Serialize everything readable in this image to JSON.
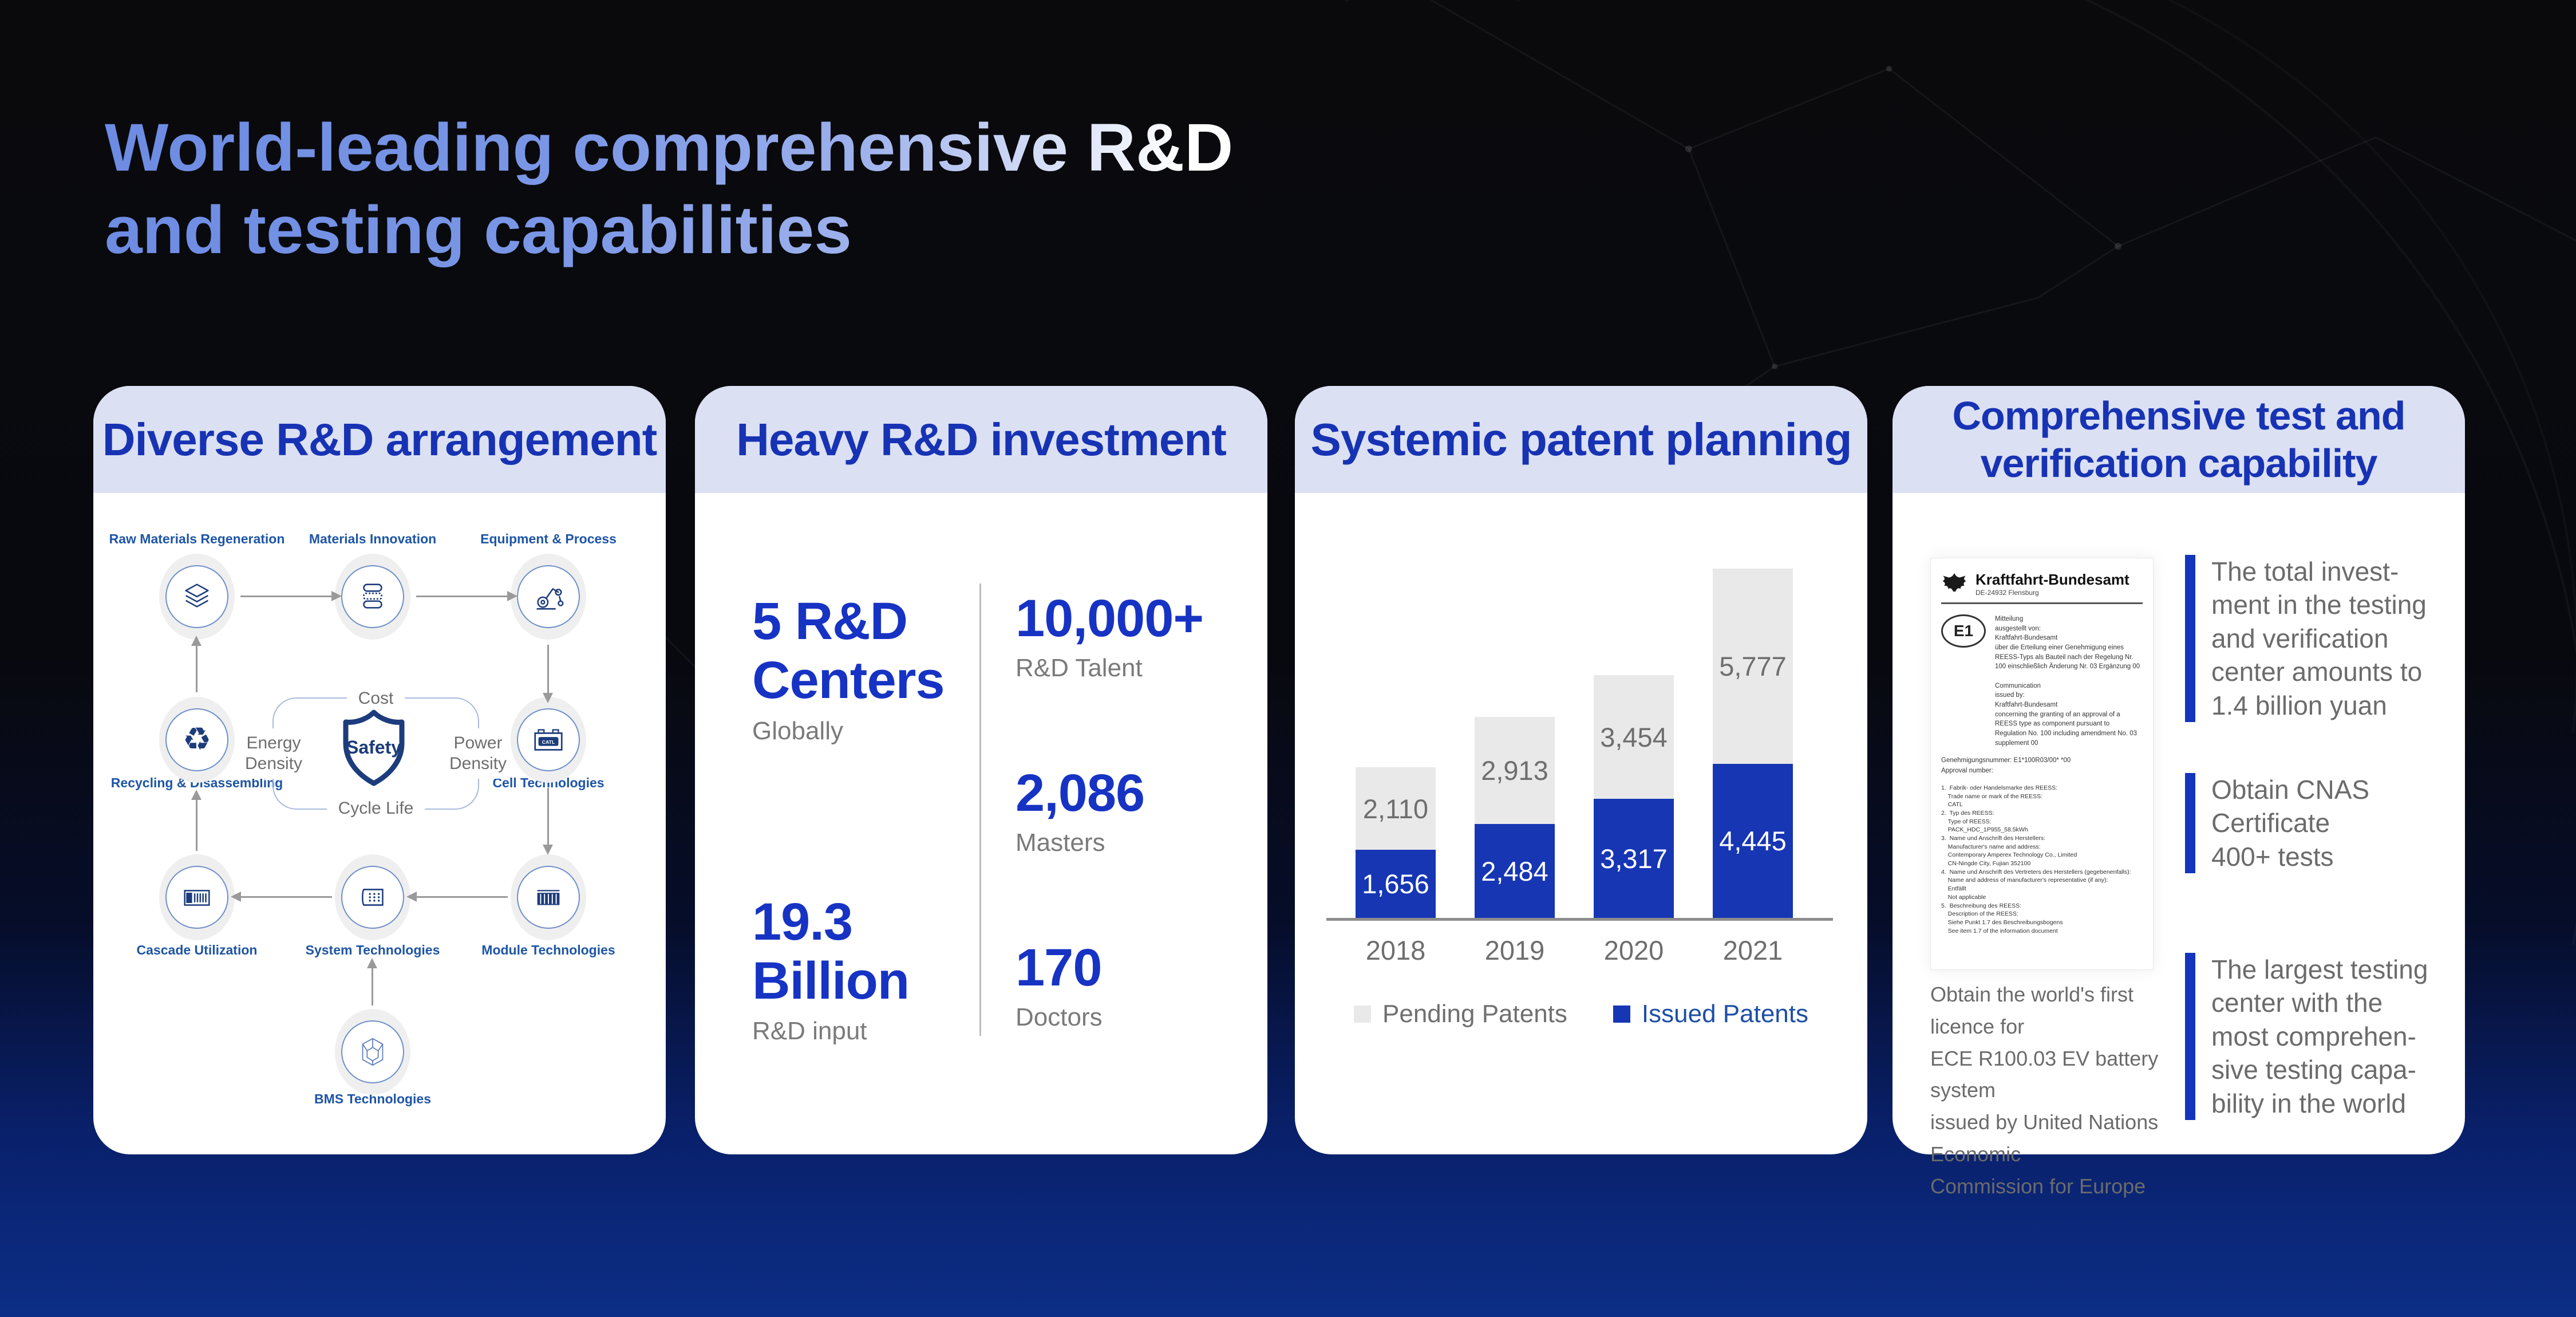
{
  "colors": {
    "accent_blue": "#1733c4",
    "header_bg": "#dbe0f3",
    "header_text": "#1733b4",
    "bar_issued": "#1636b4",
    "bar_pending": "#e9e9e9",
    "highlight_bar": "#1334bc",
    "shield_navy": "#1c3c7c",
    "title_gradient_start": "#6c8be2",
    "title_gradient_end": "#ffffff"
  },
  "slide": {
    "title": "World-leading comprehensive R&D\nand testing capabilities"
  },
  "cards": {
    "arrangement": {
      "title": "Diverse R&D arrangement",
      "nodes": {
        "raw": "Raw Materials Regeneration",
        "materials": "Materials Innovation",
        "equipment": "Equipment & Process",
        "recycling": "Recycling & Disassembling",
        "cell": "Cell Technologies",
        "cascade": "Cascade Utilization",
        "system": "System Technologies",
        "module": "Module Technologies",
        "bms": "BMS Technologies"
      },
      "shield": {
        "center": "Safety",
        "top": "Cost",
        "bottom": "Cycle Life",
        "left": "Energy\nDensity",
        "right": "Power\nDensity"
      },
      "battery_logo": "CATL"
    },
    "investment": {
      "title": "Heavy R&D investment",
      "left": [
        {
          "value": "5 R&D\nCenters",
          "label": "Globally"
        },
        {
          "value": "19.3\nBillion",
          "label": "R&D input"
        }
      ],
      "right": [
        {
          "value": "10,000+",
          "label": "R&D Talent"
        },
        {
          "value": "2,086",
          "label": "Masters"
        },
        {
          "value": "170",
          "label": "Doctors"
        }
      ]
    },
    "patents": {
      "title": "Systemic patent planning"
    },
    "testing": {
      "title": "Comprehensive test and\nverification capability",
      "certificate": {
        "agency": "Kraftfahrt-Bundesamt",
        "agency_sub": "DE-24932 Flensburg",
        "mark": "E1",
        "mitteilung": "Mitteilung\nausgestellt von:\nKraftfahrt-Bundesamt\nüber die Erteilung einer Genehmigung eines REESS-Typs als Bauteil nach der Regelung Nr. 100 einschließlich Änderung Nr. 03 Ergänzung 00\n\nCommunication\nissued by:\nKraftfahrt-Bundesamt\nconcerning the granting of an approval of a REESS type as component pursuant to Regulation No. 100 including amendment No. 03 supplement 00",
        "approval": "Genehmigungsnummer: E1*100R03/00*      *00\nApproval number:",
        "items": "1.  Fabrik- oder Handelsmarke des REESS:\n    Trade name or mark of the REESS:\n    CATL\n2.  Typ des REESS:\n    Type of REESS:\n    PACK_HDC_1P955_58.5kWh\n3.  Name und Anschrift des Herstellers:\n    Manufacturer's name and address:\n    Contemporary Amperex Technology Co., Limited\n    CN-Ningde City, Fujian 352100\n4.  Name und Anschrift des Vertreters des Herstellers (gegebenenfalls):\n    Name and address of manufacturer's representative (if any):\n    Entfällt\n    Not applicable\n5.  Beschreibung des REESS:\n    Description of the REESS:\n    Siehe Punkt 1.7 des Beschreibungsbogens\n    See item 1.7 of the information document"
      },
      "highlights": [
        {
          "text": "The total invest-\nment in the testing\nand verification\ncenter amounts to\n1.4 billion yuan"
        },
        {
          "text": "Obtain CNAS\nCertificate\n400+ tests"
        },
        {
          "text": "The largest testing\ncenter with the\nmost comprehen-\nsive testing capa-\nbility in the world"
        }
      ],
      "note": "Obtain the world's first licence for\nECE R100.03 EV battery system\nissued by United Nations Economic\nCommission for Europe"
    }
  },
  "chart_data": {
    "type": "bar",
    "stacked": true,
    "title": "Systemic patent planning",
    "categories": [
      "2018",
      "2019",
      "2020",
      "2021"
    ],
    "series": [
      {
        "name": "Pending Patents",
        "color": "#e9e9e9",
        "value_label_color": "#6e6e6e",
        "legend_text_color": "#6f6f6f",
        "values": [
          2110,
          2913,
          3454,
          5777
        ]
      },
      {
        "name": "Issued Patents",
        "color": "#1636b4",
        "value_label_color": "#ffffff",
        "legend_text_color": "#1d4fa6",
        "values": [
          1656,
          2484,
          3317,
          4445
        ]
      }
    ],
    "xlabel": "",
    "ylabel": "",
    "grid": false,
    "legend_position": "bottom",
    "value_labels": true
  }
}
